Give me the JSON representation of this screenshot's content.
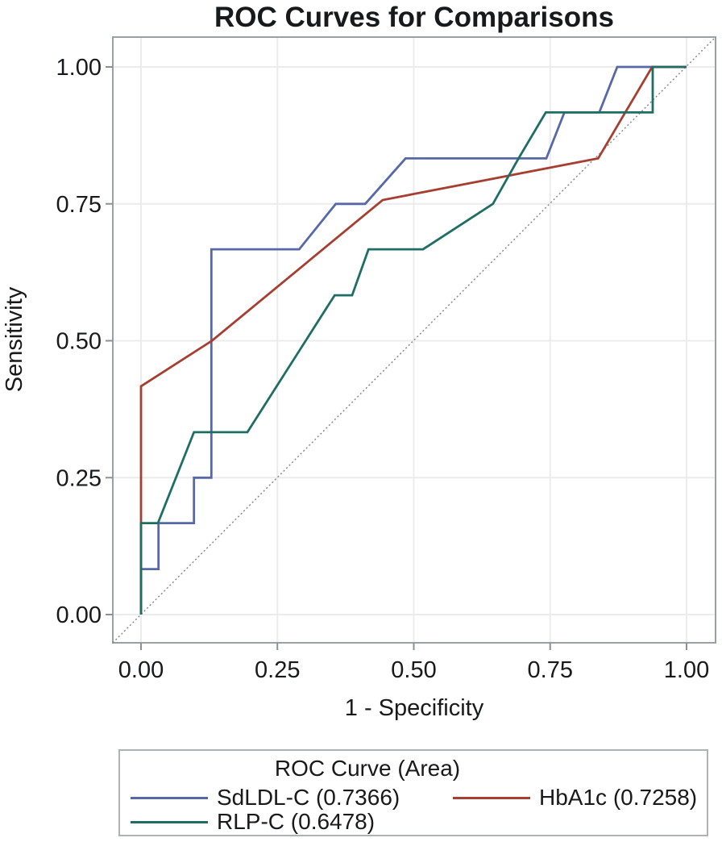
{
  "chart_data": {
    "type": "line",
    "subtype": "roc",
    "title": "ROC Curves for Comparisons",
    "xlabel": "1 - Specificity",
    "ylabel": "Sensitivity",
    "xlim": [
      0,
      1
    ],
    "ylim": [
      0,
      1
    ],
    "grid": true,
    "x_ticks": {
      "values": [
        0,
        0.25,
        0.5,
        0.75,
        1
      ],
      "labels": [
        "0.00",
        "0.25",
        "0.50",
        "0.75",
        "1.00"
      ]
    },
    "y_ticks": {
      "values": [
        0,
        0.25,
        0.5,
        0.75,
        1
      ],
      "labels": [
        "0.00",
        "0.25",
        "0.50",
        "0.75",
        "1.00"
      ]
    },
    "reference_line": {
      "type": "diagonal",
      "from": [
        0,
        0
      ],
      "to": [
        1,
        1
      ],
      "style": "dotted"
    },
    "legend_position": "bottom",
    "series": [
      {
        "name": "SdLDL-C",
        "area": 0.7366,
        "color": "#5668a8",
        "points": [
          [
            0,
            0
          ],
          [
            0,
            0.083
          ],
          [
            0.032,
            0.083
          ],
          [
            0.032,
            0.167
          ],
          [
            0.097,
            0.167
          ],
          [
            0.097,
            0.25
          ],
          [
            0.129,
            0.25
          ],
          [
            0.129,
            0.667
          ],
          [
            0.29,
            0.667
          ],
          [
            0.357,
            0.75
          ],
          [
            0.411,
            0.75
          ],
          [
            0.485,
            0.833
          ],
          [
            0.743,
            0.833
          ],
          [
            0.776,
            0.917
          ],
          [
            0.84,
            0.917
          ],
          [
            0.873,
            1
          ],
          [
            1,
            1
          ]
        ]
      },
      {
        "name": "HbA1c",
        "area": 0.7258,
        "color": "#a63f31",
        "points": [
          [
            0,
            0
          ],
          [
            0,
            0.417
          ],
          [
            0.13,
            0.5
          ],
          [
            0.443,
            0.757
          ],
          [
            0.838,
            0.833
          ],
          [
            0.937,
            1
          ],
          [
            1,
            1
          ]
        ]
      },
      {
        "name": "RLP-C",
        "area": 0.6478,
        "color": "#1e6e64",
        "points": [
          [
            0,
            0
          ],
          [
            0,
            0.167
          ],
          [
            0.031,
            0.167
          ],
          [
            0.097,
            0.333
          ],
          [
            0.195,
            0.333
          ],
          [
            0.355,
            0.583
          ],
          [
            0.387,
            0.583
          ],
          [
            0.417,
            0.667
          ],
          [
            0.517,
            0.667
          ],
          [
            0.645,
            0.75
          ],
          [
            0.692,
            0.833
          ],
          [
            0.742,
            0.917
          ],
          [
            0.938,
            0.917
          ],
          [
            0.938,
            1
          ],
          [
            1,
            1
          ]
        ]
      }
    ]
  },
  "legend": {
    "title": "ROC Curve (Area)",
    "entries": [
      {
        "label": "SdLDL-C  (0.7366)",
        "color": "#5668a8"
      },
      {
        "label": "HbA1c  (0.7258)",
        "color": "#a63f31"
      },
      {
        "label": "RLP-C  (0.6478)",
        "color": "#1e6e64"
      }
    ]
  }
}
